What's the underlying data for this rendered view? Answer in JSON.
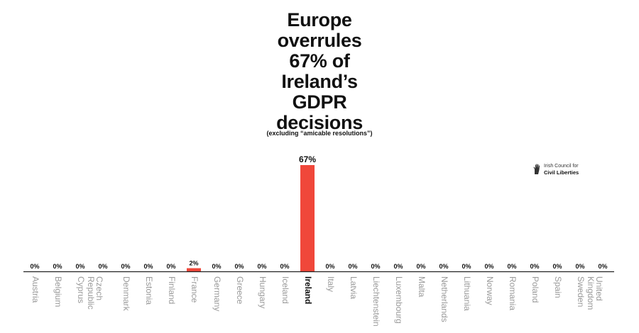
{
  "chart_data": {
    "type": "bar",
    "title": "Europe\noverrules\n67% of\nIreland’s\nGDPR\ndecisions",
    "subtitle": "(excluding “amicable resolutions”)",
    "xlabel": "",
    "ylabel": "",
    "ylim": [
      0,
      67
    ],
    "grid": false,
    "categories": [
      "Austria",
      "Belgium",
      "Cyprus",
      "Czech Republic",
      "Denmark",
      "Estonia",
      "Finland",
      "France",
      "Germany",
      "Greece",
      "Hungary",
      "Iceland",
      "Ireland",
      "Italy",
      "Latvia",
      "Liechtenstein",
      "Luxembourg",
      "Malta",
      "Netherlands",
      "Lithuania",
      "Norway",
      "Romania",
      "Poland",
      "Spain",
      "Sweden",
      "United Kingdom"
    ],
    "values": [
      0,
      0,
      0,
      0,
      0,
      0,
      0,
      2,
      0,
      0,
      0,
      0,
      67,
      0,
      0,
      0,
      0,
      0,
      0,
      0,
      0,
      0,
      0,
      0,
      0,
      0
    ],
    "value_suffix": "%",
    "highlight_category": "Ireland",
    "colors": {
      "bar": "#f0473a",
      "axis": "#222222",
      "label": "#111111",
      "category": "#9a9a9a",
      "highlight_category": "#111111"
    }
  },
  "logo": {
    "line1": "Irish Council for",
    "line2": "Civil Liberties",
    "icon": "raised-hand-icon"
  }
}
